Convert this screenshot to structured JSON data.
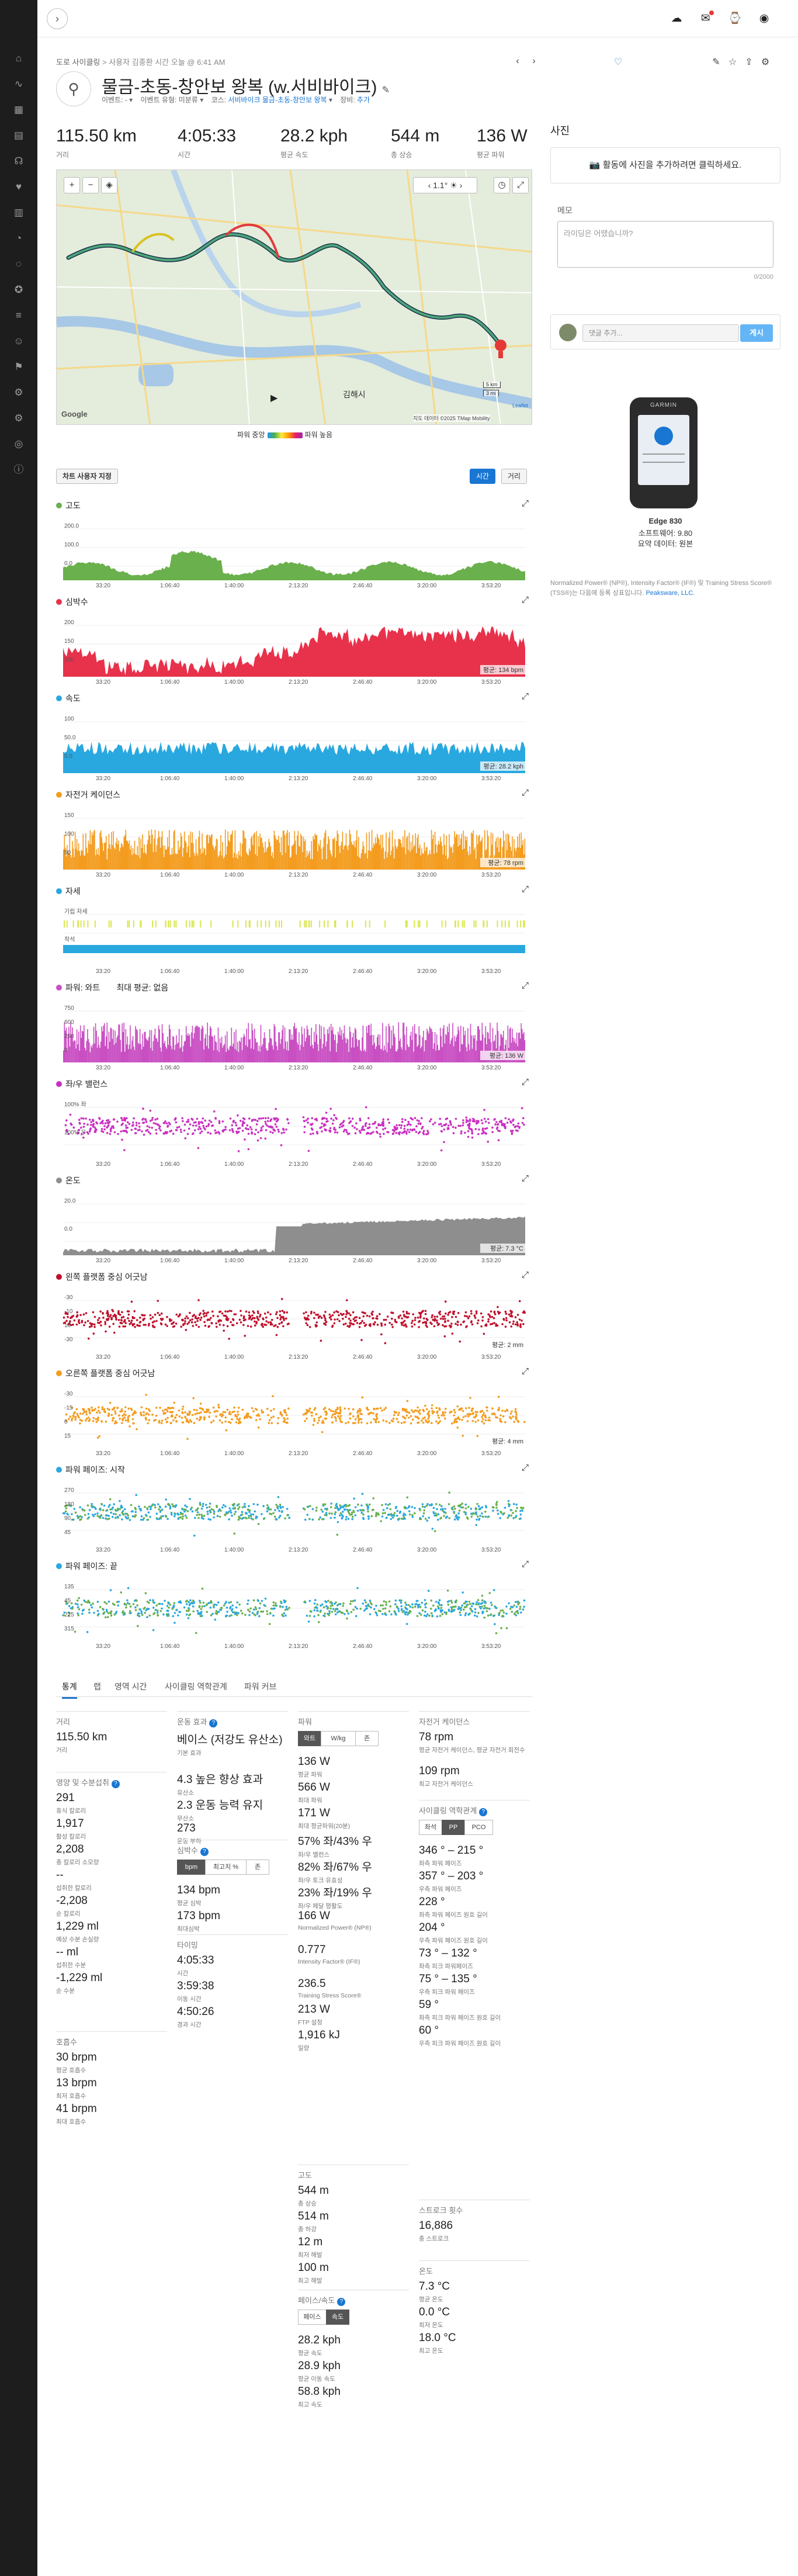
{
  "header": {
    "breadcrumb_parent": "도로 사이클링",
    "breadcrumb_sep": ">",
    "breadcrumb_tail": "사용자 김종환 시간 오늘 @ 6:41 AM",
    "title": "물금-초동-창안보 왕복 (w.서비바이크)",
    "meta": {
      "event_label": "이벤트:",
      "event_value": "-",
      "event_type_label": "이벤트 유형:",
      "event_type_value": "미분류",
      "course_label": "코스:",
      "course_value": "서비바이크 물금-초동-창안보 왕복",
      "gear_label": "장비:",
      "gear_value": "추가"
    }
  },
  "summary": [
    {
      "value": "115.50 km",
      "label": "거리"
    },
    {
      "value": "4:05:33",
      "label": "시간"
    },
    {
      "value": "28.2 kph",
      "label": "평균 속도"
    },
    {
      "value": "544 m",
      "label": "총 상승"
    },
    {
      "value": "136 W",
      "label": "평균 파워"
    }
  ],
  "map": {
    "temperature": "1.1°",
    "place_label": "김해시",
    "scale_top": "5 km",
    "scale_bottom": "3 mi",
    "attribution": "지도 데이터 ©2025 TMap Mobility",
    "google": "Google",
    "leaflet": "Leaflet"
  },
  "power_legend": {
    "low": "파워 중앙",
    "high": "파워 높음"
  },
  "chart_controls": {
    "custom_chart": "차트 사용자 지정",
    "time": "시간",
    "distance": "거리"
  },
  "x_ticks": [
    "33:20",
    "1:06:40",
    "1:40:00",
    "2:13:20",
    "2:46:40",
    "3:20:00",
    "3:53:20"
  ],
  "charts": [
    {
      "id": "elevation",
      "title": "고도",
      "color": "#6ab04c",
      "ticks": [
        "200.0",
        "100.0",
        "0.0"
      ],
      "avg": "",
      "style": "area"
    },
    {
      "id": "heart",
      "title": "심박수",
      "color": "#e8314b",
      "ticks": [
        "200",
        "150",
        "100"
      ],
      "avg": "평균: 134 bpm",
      "style": "area"
    },
    {
      "id": "speed",
      "title": "속도",
      "color": "#29a8e0",
      "ticks": [
        "100",
        "50.0",
        "0.0"
      ],
      "avg": "평균: 28.2 kph",
      "style": "area"
    },
    {
      "id": "cadence",
      "title": "자전거 케이던스",
      "color": "#f39c1f",
      "ticks": [
        "150",
        "100",
        "50"
      ],
      "avg": "평균: 78 rpm",
      "style": "bars"
    },
    {
      "id": "posture",
      "title": "자세",
      "color": "#29a8e0",
      "ticks": [
        "기립 자세",
        "착석"
      ],
      "avg": "",
      "style": "posture"
    },
    {
      "id": "power",
      "title": "파워: 와트",
      "color": "#c94fc3",
      "ticks": [
        "750",
        "600",
        "250",
        "0"
      ],
      "avg": "평균: 136 W",
      "style": "bars",
      "extra": "최대 평균: 없음"
    },
    {
      "id": "balance",
      "title": "좌/우 밸런스",
      "color": "#c92fc0",
      "ticks": [
        "100% 좌",
        "100% 우"
      ],
      "avg": "",
      "style": "dots"
    },
    {
      "id": "temp",
      "title": "온도",
      "color": "#8e8e8e",
      "ticks": [
        "20.0",
        "0.0"
      ],
      "avg": "평균: 7.3 °C",
      "style": "area"
    },
    {
      "id": "lpco",
      "title": "왼쪽 플랫폼 중심 어긋남",
      "color": "#c0102b",
      "ticks": [
        "-30",
        "-10",
        "10",
        "-30"
      ],
      "avg": "평균: 2 mm",
      "style": "dots"
    },
    {
      "id": "rpco",
      "title": "오른쪽 플랫폼 중심 어긋남",
      "color": "#f39c1f",
      "ticks": [
        "-30",
        "-15",
        "0",
        "15"
      ],
      "avg": "평균: 4 mm",
      "style": "dots"
    },
    {
      "id": "pps",
      "title": "파워 페이즈: 시작",
      "color": "#29a8e0",
      "ticks": [
        "270",
        "180",
        "90",
        "45"
      ],
      "avg": "",
      "style": "phase"
    },
    {
      "id": "ppe",
      "title": "파워 페이즈: 끝",
      "color": "#29a8e0",
      "ticks": [
        "135",
        "45",
        "225",
        "315"
      ],
      "avg": "",
      "style": "phase"
    }
  ],
  "tabs": [
    "통계",
    "랩",
    "영역 시간",
    "사이클링 역학관계",
    "파워 커브"
  ],
  "stats": {
    "distance": {
      "title": "거리",
      "items": [
        {
          "v": "115.50 km",
          "l": "거리"
        }
      ]
    },
    "calories": {
      "title": "영양 및 수분섭취",
      "items": [
        {
          "v": "291",
          "l": "휴식 칼로리"
        },
        {
          "v": "1,917",
          "l": "활성 칼로리"
        },
        {
          "v": "2,208",
          "l": "총 칼로리 소모량"
        },
        {
          "v": "--",
          "l": "섭취한 칼로리"
        },
        {
          "v": "-2,208",
          "l": "순 칼로리"
        },
        {
          "v": "1,229 ml",
          "l": "예상 수분 손실량"
        },
        {
          "v": "-- ml",
          "l": "섭취한 수분"
        },
        {
          "v": "-1,229 ml",
          "l": "순 수분"
        }
      ]
    },
    "breathing": {
      "title": "호흡수",
      "items": [
        {
          "v": "30 brpm",
          "l": "평균 호흡수"
        },
        {
          "v": "13 brpm",
          "l": "최저 호흡수"
        },
        {
          "v": "41 brpm",
          "l": "최대 호흡수"
        }
      ]
    },
    "training": {
      "title": "운동 효과",
      "items": [
        {
          "v": "베이스 (저강도 유산소)",
          "l": "기본 효과"
        },
        {
          "v": "4.3 높은 향상 효과",
          "l": "유산소"
        },
        {
          "v": "2.3 운동 능력 유지",
          "l": "무산소"
        },
        {
          "v": "273",
          "l": "운동 부하"
        }
      ]
    },
    "hr": {
      "title": "심박수",
      "segs": [
        "bpm",
        "최고치 %",
        "존"
      ],
      "items": [
        {
          "v": "134 bpm",
          "l": "평균 심박"
        },
        {
          "v": "173 bpm",
          "l": "최대심박"
        }
      ]
    },
    "timing": {
      "title": "타이밍",
      "items": [
        {
          "v": "4:05:33",
          "l": "시간"
        },
        {
          "v": "3:59:38",
          "l": "이동 시간"
        },
        {
          "v": "4:50:26",
          "l": "경과 시간"
        }
      ]
    },
    "power": {
      "title": "파워",
      "segs": [
        "와트",
        "W/kg",
        "존"
      ],
      "items": [
        {
          "v": "136 W",
          "l": "평균 파워"
        },
        {
          "v": "566 W",
          "l": "최대 파워"
        },
        {
          "v": "171 W",
          "l": "최대 평균파워(20분)"
        },
        {
          "v": "57% 좌/43% 우",
          "l": "좌/우 밸런스"
        },
        {
          "v": "82% 좌/67% 우",
          "l": "좌/우 토크 유효성"
        },
        {
          "v": "23% 좌/19% 우",
          "l": "좌/우 페달 평활도"
        },
        {
          "v": "166 W",
          "l": "Normalized Power® (NP®)"
        },
        {
          "v": "0.777",
          "l": "Intensity Factor® (IF®)"
        },
        {
          "v": "236.5",
          "l": "Training Stress Score®"
        },
        {
          "v": "213 W",
          "l": "FTP 설정"
        },
        {
          "v": "1,916 kJ",
          "l": "일량"
        }
      ]
    },
    "elevation": {
      "title": "고도",
      "items": [
        {
          "v": "544 m",
          "l": "총 상승"
        },
        {
          "v": "514 m",
          "l": "총 하강"
        },
        {
          "v": "12 m",
          "l": "최저 해발"
        },
        {
          "v": "100 m",
          "l": "최고 해발"
        }
      ]
    },
    "pace": {
      "title": "페이스/속도",
      "segs": [
        "페이스",
        "속도"
      ],
      "items": [
        {
          "v": "28.2 kph",
          "l": "평균 속도"
        },
        {
          "v": "28.9 kph",
          "l": "평균 이동 속도"
        },
        {
          "v": "58.8 kph",
          "l": "최고 속도"
        }
      ]
    },
    "cadence": {
      "title": "자전거 케이던스",
      "items": [
        {
          "v": "78 rpm",
          "l": "평균 자전거 케이던스, 평균 자전거 회전수"
        },
        {
          "v": "109 rpm",
          "l": "최고 자전거 케이던스"
        }
      ]
    },
    "dynamics": {
      "title": "사이클링 역학관계",
      "segs": [
        "좌석",
        "PP",
        "PCO"
      ],
      "items": [
        {
          "v": "346 ° – 215 °",
          "l": "좌측 파워 페이즈"
        },
        {
          "v": "357 ° – 203 °",
          "l": "우측 파워 페이즈"
        },
        {
          "v": "228 °",
          "l": "좌측 파워 페이즈 원호 길이"
        },
        {
          "v": "204 °",
          "l": "우측 파워 페이즈 원호 길이"
        },
        {
          "v": "73 ° – 132 °",
          "l": "좌측 피크 파워페이즈"
        },
        {
          "v": "75 ° – 135 °",
          "l": "우측 피크 파워 페이즈"
        },
        {
          "v": "59 °",
          "l": "좌측 피크 파워 페이즈 원호 길이"
        },
        {
          "v": "60 °",
          "l": "우측 피크 파워 페이즈 원호 길이"
        }
      ]
    },
    "strokes": {
      "title": "스트로크 횟수",
      "items": [
        {
          "v": "16,886",
          "l": "총 스트로크"
        }
      ]
    },
    "temperature": {
      "title": "온도",
      "items": [
        {
          "v": "7.3 °C",
          "l": "평균 온도"
        },
        {
          "v": "0.0 °C",
          "l": "최저 온도"
        },
        {
          "v": "18.0 °C",
          "l": "최고 온도"
        }
      ]
    }
  },
  "right_panel": {
    "photos_title": "사진",
    "photo_button": "활동에 사진을 추가하려면 클릭하세요.",
    "notes_title": "메모",
    "notes_placeholder": "라이딩은 어땠습니까?",
    "notes_counter": "0/2000",
    "comment_placeholder": "댓글 추가...",
    "post_button": "게시",
    "device_brand": "GARMIN",
    "device_name": "Edge 830",
    "software": "소프트웨어: 9.80",
    "summary_data": "요약 데이터: 원본",
    "np_note": "Normalized Power® (NP®), Intensity Factor® (IF®) 및 Training Stress Score® (TSS®)는 다음에 등록 상표입니다.",
    "np_link": "Peaksware, LLC."
  }
}
